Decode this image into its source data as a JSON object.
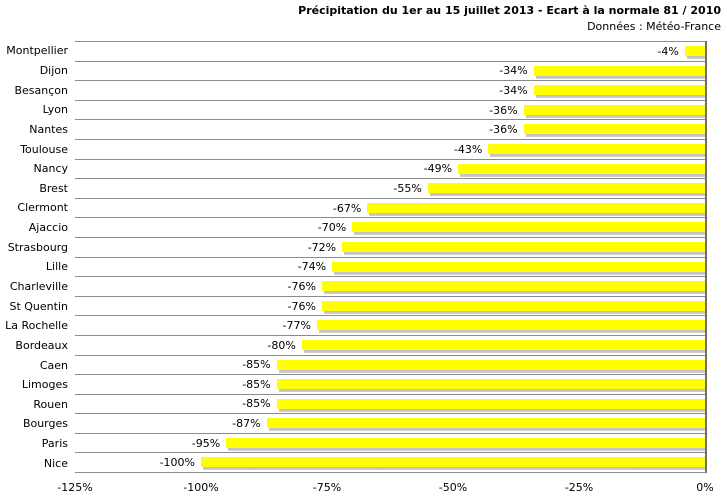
{
  "chart_data": {
    "type": "bar",
    "orientation": "horizontal",
    "title": "Précipitation du 1er au 15 juillet 2013 - Ecart à la normale 81 / 2010",
    "subtitle": "Données : Météo-France",
    "categories": [
      "Montpellier",
      "Dijon",
      "Besançon",
      "Lyon",
      "Nantes",
      "Toulouse",
      "Nancy",
      "Brest",
      "Clermont",
      "Ajaccio",
      "Strasbourg",
      "Lille",
      "Charleville",
      "St Quentin",
      "La Rochelle",
      "Bordeaux",
      "Caen",
      "Limoges",
      "Rouen",
      "Bourges",
      "Paris",
      "Nice"
    ],
    "values": [
      -4,
      -34,
      -34,
      -36,
      -36,
      -43,
      -49,
      -55,
      -67,
      -70,
      -72,
      -74,
      -76,
      -76,
      -77,
      -80,
      -85,
      -85,
      -85,
      -87,
      -95,
      -100
    ],
    "value_labels": [
      "-4%",
      "-34%",
      "-34%",
      "-36%",
      "-36%",
      "-43%",
      "-49%",
      "-55%",
      "-67%",
      "-70%",
      "-72%",
      "-74%",
      "-76%",
      "-76%",
      "-77%",
      "-80%",
      "-85%",
      "-85%",
      "-85%",
      "-87%",
      "-95%",
      "-100%"
    ],
    "x_ticks": [
      {
        "label": "-125%",
        "value": -125
      },
      {
        "label": "-100%",
        "value": -100
      },
      {
        "label": "-75%",
        "value": -75
      },
      {
        "label": "-50%",
        "value": -50
      },
      {
        "label": "-25%",
        "value": -25
      },
      {
        "label": "0%",
        "value": 0
      }
    ],
    "xlim": [
      -125,
      0
    ],
    "xlabel": "",
    "ylabel": "",
    "legend": "none",
    "gridlines": "horizontal category separators only",
    "bar_color": "#FFFF00",
    "shadow_color": "#A8A8A8",
    "separator_color": "#8C8C8C",
    "axis_line_color": "#6E6E6E",
    "text_color": "#000000",
    "background_color": "#FFFFFF"
  }
}
